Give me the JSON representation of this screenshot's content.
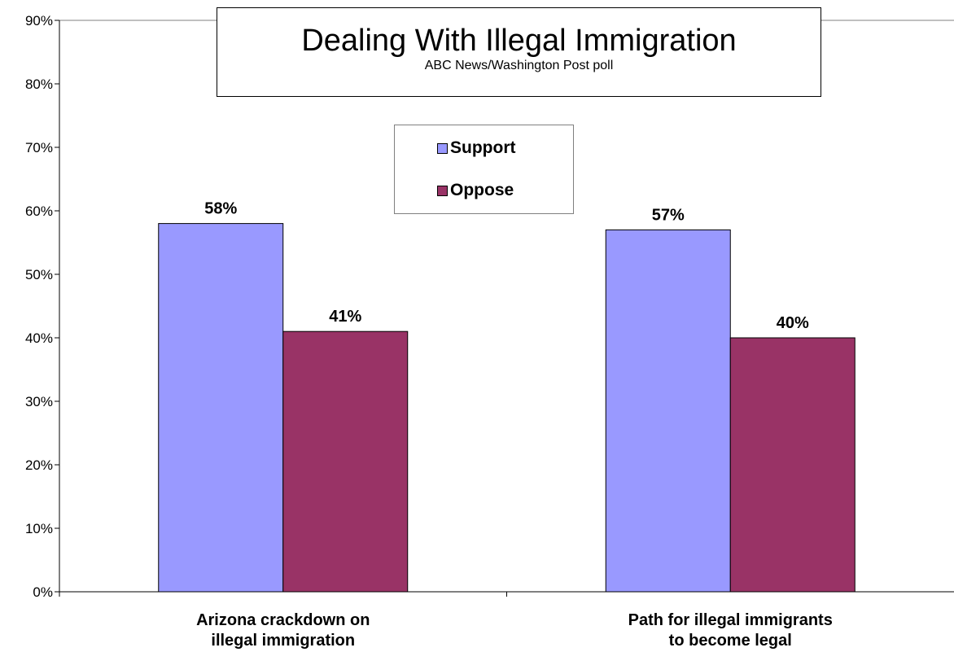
{
  "chart_data": {
    "type": "bar",
    "title": "Dealing With Illegal Immigration",
    "subtitle": "ABC News/Washington Post poll",
    "categories": [
      [
        "Arizona crackdown on",
        "illegal immigration"
      ],
      [
        "Path for illegal immigrants",
        "to become legal"
      ]
    ],
    "series": [
      {
        "name": "Support",
        "color": "#9999FF",
        "values": [
          58,
          57
        ],
        "labels": [
          "58%",
          "57%"
        ]
      },
      {
        "name": "Oppose",
        "color": "#993366",
        "values": [
          41,
          40
        ],
        "labels": [
          "41%",
          "40%"
        ]
      }
    ],
    "yticks": [
      "0%",
      "10%",
      "20%",
      "30%",
      "40%",
      "50%",
      "60%",
      "70%",
      "80%",
      "90%"
    ],
    "ylim": [
      0,
      90
    ],
    "xlabel": "",
    "ylabel": "",
    "grid": false,
    "legend": {
      "position": "top-center"
    }
  }
}
